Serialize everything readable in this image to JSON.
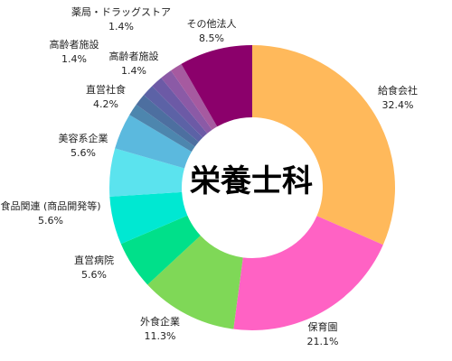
{
  "chart_data": {
    "type": "pie",
    "donut": true,
    "center_label": "栄養士科",
    "slices": [
      {
        "label": "給食会社",
        "value": 32.4,
        "display": "32.4%",
        "color": "#FFB95B"
      },
      {
        "label": "保育園",
        "value": 21.1,
        "display": "21.1%",
        "color": "#FF62C4"
      },
      {
        "label": "外食企業",
        "value": 11.3,
        "display": "11.3%",
        "color": "#7FD857"
      },
      {
        "label": "直営病院",
        "value": 5.6,
        "display": "5.6%",
        "color": "#00E08A"
      },
      {
        "label": "食品関連 (商品開発等)",
        "value": 5.6,
        "display": "5.6%",
        "color": "#00E8D2"
      },
      {
        "label": "美容系企業",
        "value": 5.6,
        "display": "5.6%",
        "color": "#5BE3EE"
      },
      {
        "label": "直営社食",
        "value": 4.2,
        "display": "4.2%",
        "color": "#5BB9DE"
      },
      {
        "label": "",
        "value": 1.4,
        "display": "",
        "color": "#4D86AE"
      },
      {
        "label": "",
        "value": 1.4,
        "display": "",
        "color": "#4D6FA0"
      },
      {
        "label": "高齢者施設",
        "value": 1.4,
        "display": "1.4%",
        "color": "#5C62A6"
      },
      {
        "label": "高齢者施設",
        "value": 1.4,
        "display": "1.4%",
        "color": "#6C5AA6"
      },
      {
        "label": "薬局・ドラッグストア",
        "value": 1.4,
        "display": "1.4%",
        "color": "#8B5AA6"
      },
      {
        "label": "",
        "value": 1.4,
        "display": "",
        "color": "#A65AA0"
      },
      {
        "label": "その他法人",
        "value": 8.5,
        "display": "8.5%",
        "color": "#8B006B"
      }
    ]
  }
}
